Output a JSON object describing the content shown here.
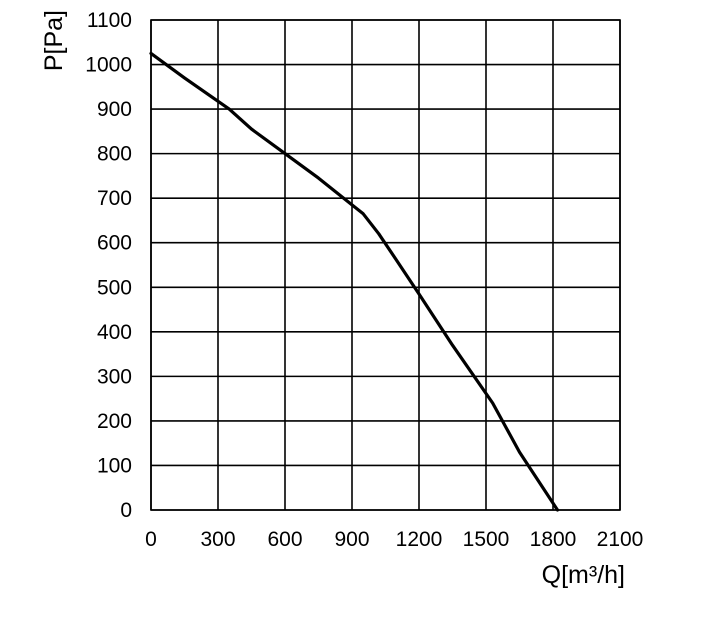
{
  "chart_data": {
    "type": "line",
    "title": "",
    "xlabel": "Q[m³/h]",
    "ylabel": "P[Pa]",
    "xlim": [
      0,
      2100
    ],
    "ylim": [
      0,
      1100
    ],
    "x_ticks": [
      "0",
      "300",
      "600",
      "900",
      "1200",
      "1500",
      "1800",
      "2100"
    ],
    "y_ticks": [
      "0",
      "100",
      "200",
      "300",
      "400",
      "500",
      "600",
      "700",
      "800",
      "900",
      "1000",
      "1100"
    ],
    "grid": true,
    "legend": "none",
    "series": [
      {
        "color": "#000000",
        "x": [
          0,
          150,
          350,
          450,
          600,
          750,
          900,
          950,
          1020,
          1100,
          1200,
          1350,
          1530,
          1650,
          1820
        ],
        "y": [
          1025,
          970,
          900,
          855,
          800,
          745,
          685,
          665,
          620,
          560,
          485,
          370,
          240,
          130,
          0
        ]
      }
    ]
  }
}
